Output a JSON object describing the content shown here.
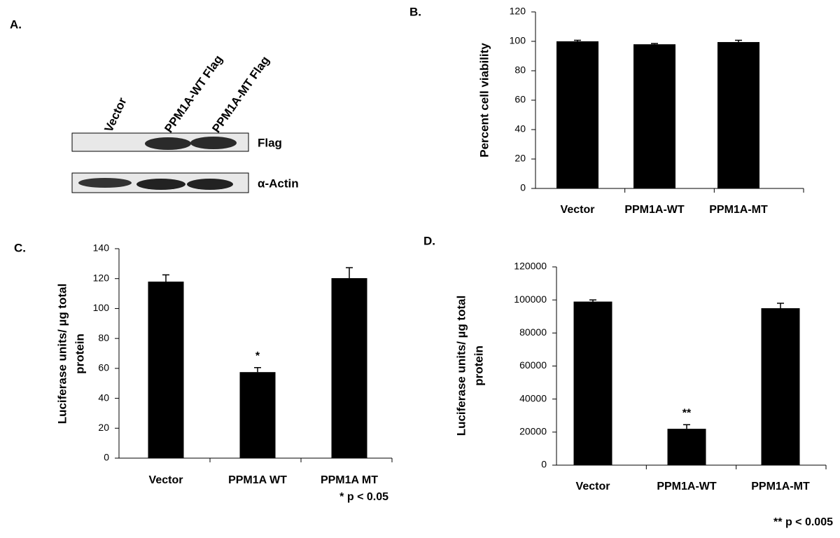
{
  "panel_a": {
    "label": "A.",
    "lanes": [
      "Vector",
      "PPM1A-WT Flag",
      "PPM1A-MT Flag"
    ],
    "blots": [
      "Flag",
      "α-Actin"
    ]
  },
  "chart_data": [
    {
      "type": "bar",
      "label": "B.",
      "ylabel": [
        "Percent cell viability"
      ],
      "categories": [
        "Vector",
        "PPM1A-WT",
        "PPM1A-MT"
      ],
      "values": [
        100,
        98,
        99.5
      ],
      "errors": [
        0.7,
        0.5,
        1.2
      ],
      "color": "#000000",
      "ylim": [
        0,
        120
      ],
      "yticks": [
        0,
        20,
        40,
        60,
        80,
        100,
        120
      ]
    },
    {
      "type": "bar",
      "label": "C.",
      "ylabel": [
        "Luciferase units/ µg total",
        "protein"
      ],
      "categories": [
        "Vector",
        "PPM1A WT",
        "PPM1A MT"
      ],
      "values": [
        118,
        57.5,
        120.3
      ],
      "errors": [
        4.5,
        3,
        7
      ],
      "color": "#000000",
      "significance": [
        null,
        "*",
        null
      ],
      "footnote": "* p < 0.05",
      "ylim": [
        0,
        140
      ],
      "yticks": [
        0,
        20,
        40,
        60,
        80,
        100,
        120,
        140
      ]
    },
    {
      "type": "bar",
      "label": "D.",
      "ylabel": [
        "Luciferase units/ µg total",
        "protein"
      ],
      "categories": [
        "Vector",
        "PPM1A-WT",
        "PPM1A-MT"
      ],
      "values": [
        99000,
        22000,
        95000
      ],
      "errors": [
        1000,
        2500,
        3000
      ],
      "color": "#000000",
      "significance": [
        null,
        "**",
        null
      ],
      "footnote": "** p < 0.005",
      "ylim": [
        0,
        120000
      ],
      "yticks": [
        0,
        20000,
        40000,
        60000,
        80000,
        100000,
        120000
      ]
    }
  ]
}
